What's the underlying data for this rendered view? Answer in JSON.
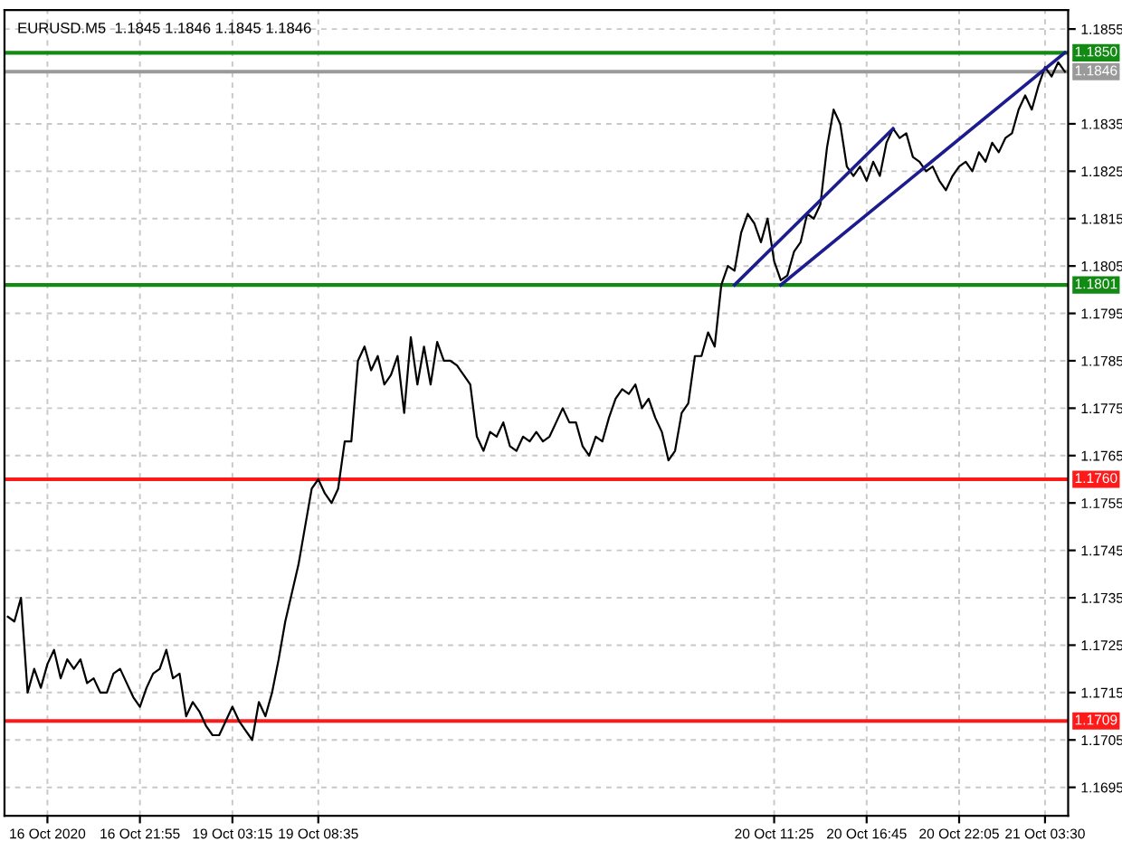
{
  "chart_data": {
    "type": "line",
    "title": "EURUSD.M5  1.1845 1.1846 1.1845 1.1846",
    "categories": [
      null,
      null,
      null,
      null,
      null,
      null,
      "16 Oct 2020",
      null,
      null,
      null,
      null,
      null,
      null,
      null,
      null,
      null,
      null,
      null,
      null,
      null,
      "16 Oct 21:55",
      null,
      null,
      null,
      null,
      null,
      null,
      null,
      null,
      null,
      null,
      null,
      null,
      null,
      "19 Oct 03:15",
      null,
      null,
      null,
      null,
      null,
      null,
      null,
      null,
      null,
      null,
      null,
      null,
      "19 Oct 08:35",
      null,
      null,
      null,
      null,
      null,
      null,
      null,
      null,
      null,
      null,
      null,
      null,
      null,
      null,
      null,
      null,
      null,
      null,
      null,
      null,
      null,
      null,
      null,
      null,
      null,
      null,
      null,
      null,
      null,
      null,
      null,
      null,
      null,
      null,
      null,
      null,
      null,
      null,
      null,
      null,
      null,
      null,
      null,
      null,
      null,
      null,
      null,
      null,
      null,
      null,
      null,
      null,
      null,
      null,
      null,
      null,
      null,
      null,
      null,
      null,
      null,
      null,
      null,
      null,
      null,
      null,
      null,
      null,
      "20 Oct 11:25",
      null,
      null,
      null,
      null,
      null,
      null,
      null,
      null,
      null,
      null,
      null,
      null,
      null,
      "20 Oct 16:45",
      null,
      null,
      null,
      null,
      null,
      null,
      null,
      null,
      null,
      null,
      null,
      null,
      null,
      "20 Oct 22:05",
      null,
      null,
      null,
      null,
      null,
      null,
      null,
      null,
      null,
      null,
      null,
      null,
      "21 Oct 03:30",
      null,
      null,
      null
    ],
    "ylim": [
      1.1689,
      1.1859
    ],
    "yticks": [
      1.1695,
      1.1705,
      1.1715,
      1.1725,
      1.1735,
      1.1745,
      1.1755,
      1.1765,
      1.1775,
      1.1785,
      1.1795,
      1.1805,
      1.1815,
      1.1825,
      1.1835,
      1.1855
    ],
    "grid": true,
    "ref_lines": [
      {
        "axis": "y",
        "value": 1.185,
        "label": "1.1850",
        "color": "#138a13"
      },
      {
        "axis": "y",
        "value": 1.1846,
        "label": "1.1846",
        "color": "#9a9a9a"
      },
      {
        "axis": "y",
        "value": 1.1801,
        "label": "1.1801",
        "color": "#138a13"
      },
      {
        "axis": "y",
        "value": 1.176,
        "label": "1.1760",
        "color": "#ff1a1a"
      },
      {
        "axis": "y",
        "value": 1.1709,
        "label": "1.1709",
        "color": "#ff1a1a"
      }
    ],
    "series": [
      {
        "color": "#000000",
        "values": [
          1.1731,
          1.173,
          1.1735,
          1.1715,
          1.172,
          1.1716,
          1.1721,
          1.1724,
          1.1718,
          1.1722,
          1.172,
          1.1722,
          1.1717,
          1.1718,
          1.1715,
          1.1715,
          1.1719,
          1.172,
          1.1717,
          1.1714,
          1.1712,
          1.1716,
          1.1719,
          1.172,
          1.1724,
          1.1718,
          1.1719,
          1.171,
          1.1713,
          1.1711,
          1.1708,
          1.1706,
          1.1706,
          1.1709,
          1.1712,
          1.1709,
          1.1707,
          1.1705,
          1.1713,
          1.171,
          1.1715,
          1.1722,
          1.173,
          1.1736,
          1.1742,
          1.175,
          1.1758,
          1.176,
          1.1757,
          1.1755,
          1.1758,
          1.1768,
          1.1768,
          1.1785,
          1.1788,
          1.1783,
          1.1786,
          1.178,
          1.1782,
          1.1786,
          1.1774,
          1.179,
          1.178,
          1.1788,
          1.178,
          1.1789,
          1.1785,
          1.1785,
          1.1784,
          1.1782,
          1.178,
          1.1769,
          1.1766,
          1.177,
          1.1769,
          1.1772,
          1.1767,
          1.1766,
          1.1769,
          1.1768,
          1.177,
          1.1768,
          1.1769,
          1.1772,
          1.1775,
          1.1772,
          1.1772,
          1.1767,
          1.1765,
          1.1769,
          1.1768,
          1.1773,
          1.1777,
          1.1779,
          1.1778,
          1.178,
          1.1775,
          1.1777,
          1.1773,
          1.177,
          1.1764,
          1.1766,
          1.1774,
          1.1776,
          1.1786,
          1.1786,
          1.1791,
          1.1788,
          1.1801,
          1.1805,
          1.1804,
          1.1812,
          1.1816,
          1.1814,
          1.181,
          1.1815,
          1.1806,
          1.1802,
          1.1803,
          1.1808,
          1.181,
          1.1816,
          1.1815,
          1.1818,
          1.183,
          1.1838,
          1.1835,
          1.1826,
          1.1824,
          1.1826,
          1.1823,
          1.1827,
          1.1824,
          1.1831,
          1.1834,
          1.1832,
          1.1833,
          1.1828,
          1.1827,
          1.1825,
          1.1826,
          1.1823,
          1.1821,
          1.1824,
          1.1826,
          1.1827,
          1.1825,
          1.1829,
          1.1827,
          1.1831,
          1.1829,
          1.1832,
          1.1833,
          1.1838,
          1.1841,
          1.1838,
          1.1843,
          1.1847,
          1.1845,
          1.1848,
          1.1846
        ]
      },
      {
        "color": "#1c1c8e",
        "values": [
          null,
          null,
          null,
          null,
          null,
          null,
          null,
          null,
          null,
          null,
          null,
          null,
          null,
          null,
          null,
          null,
          null,
          null,
          null,
          null,
          null,
          null,
          null,
          null,
          null,
          null,
          null,
          null,
          null,
          null,
          null,
          null,
          null,
          null,
          null,
          null,
          null,
          null,
          null,
          null,
          null,
          null,
          null,
          null,
          null,
          null,
          null,
          null,
          null,
          null,
          null,
          null,
          null,
          null,
          null,
          null,
          null,
          null,
          null,
          null,
          null,
          null,
          null,
          null,
          null,
          null,
          null,
          null,
          null,
          null,
          null,
          null,
          null,
          null,
          null,
          null,
          null,
          null,
          null,
          null,
          null,
          null,
          null,
          null,
          null,
          null,
          null,
          null,
          null,
          null,
          null,
          null,
          null,
          null,
          null,
          null,
          null,
          null,
          null,
          null,
          null,
          null,
          null,
          null,
          null,
          null,
          null,
          null,
          null,
          null,
          1.1801,
          null,
          null,
          null,
          null,
          null,
          null,
          null,
          null,
          null,
          null,
          null,
          null,
          null,
          null,
          null,
          null,
          null,
          null,
          null,
          null,
          null,
          null,
          null,
          1.1834,
          null,
          null,
          null,
          null,
          null,
          null,
          null,
          null,
          null,
          null,
          null,
          null,
          null,
          null,
          null,
          null,
          null,
          null,
          null,
          null,
          null,
          null,
          null,
          null,
          null,
          null
        ]
      },
      {
        "color": "#1c1c8e",
        "values": [
          null,
          null,
          null,
          null,
          null,
          null,
          null,
          null,
          null,
          null,
          null,
          null,
          null,
          null,
          null,
          null,
          null,
          null,
          null,
          null,
          null,
          null,
          null,
          null,
          null,
          null,
          null,
          null,
          null,
          null,
          null,
          null,
          null,
          null,
          null,
          null,
          null,
          null,
          null,
          null,
          null,
          null,
          null,
          null,
          null,
          null,
          null,
          null,
          null,
          null,
          null,
          null,
          null,
          null,
          null,
          null,
          null,
          null,
          null,
          null,
          null,
          null,
          null,
          null,
          null,
          null,
          null,
          null,
          null,
          null,
          null,
          null,
          null,
          null,
          null,
          null,
          null,
          null,
          null,
          null,
          null,
          null,
          null,
          null,
          null,
          null,
          null,
          null,
          null,
          null,
          null,
          null,
          null,
          null,
          null,
          null,
          null,
          null,
          null,
          null,
          null,
          null,
          null,
          null,
          null,
          null,
          null,
          null,
          null,
          null,
          null,
          null,
          null,
          null,
          null,
          null,
          null,
          1.1801,
          null,
          null,
          null,
          null,
          null,
          null,
          null,
          null,
          null,
          null,
          null,
          null,
          null,
          null,
          null,
          null,
          null,
          null,
          null,
          null,
          null,
          null,
          null,
          null,
          null,
          null,
          null,
          null,
          null,
          null,
          null,
          null,
          null,
          null,
          null,
          null,
          null,
          null,
          null,
          null,
          null,
          null,
          1.185
        ]
      }
    ]
  }
}
